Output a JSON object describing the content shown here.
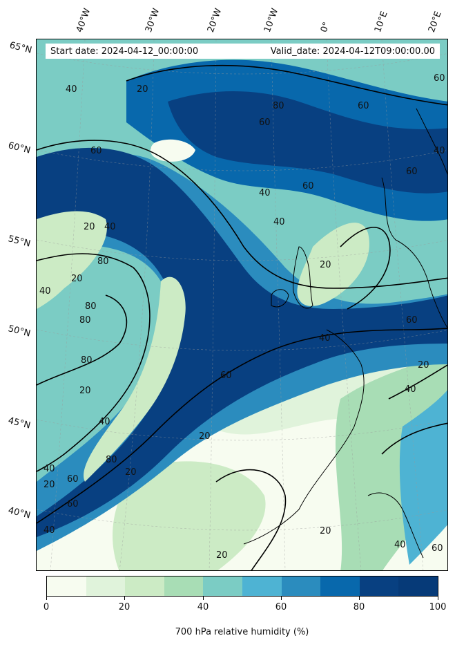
{
  "map": {
    "title_start": "Start date: 2024-04-12_00:00:00",
    "title_valid": "Valid_date: 2024-04-12T09:00:00.00",
    "lat_labels": [
      "65°N",
      "60°N",
      "55°N",
      "50°N",
      "45°N",
      "40°N"
    ],
    "lon_labels": [
      "40°W",
      "30°W",
      "20°W",
      "10°W",
      "0°",
      "10°E",
      "20°E"
    ],
    "contour_labels": [
      "20",
      "40",
      "60",
      "80"
    ],
    "colormap": [
      "#f7fcf0",
      "#e0f3db",
      "#ccebc5",
      "#a8ddb5",
      "#7bccc4",
      "#4eb3d3",
      "#2b8cbe",
      "#0868ac",
      "#084081",
      "#063a78"
    ]
  },
  "colorbar": {
    "label": "700 hPa relative humidity (%)",
    "ticks": [
      "0",
      "20",
      "40",
      "60",
      "80",
      "100"
    ],
    "colors": [
      "#f7fcf0",
      "#e0f3db",
      "#ccebc5",
      "#a8ddb5",
      "#7bccc4",
      "#4eb3d3",
      "#2b8cbe",
      "#0868ac",
      "#084081",
      "#063a78"
    ]
  }
}
